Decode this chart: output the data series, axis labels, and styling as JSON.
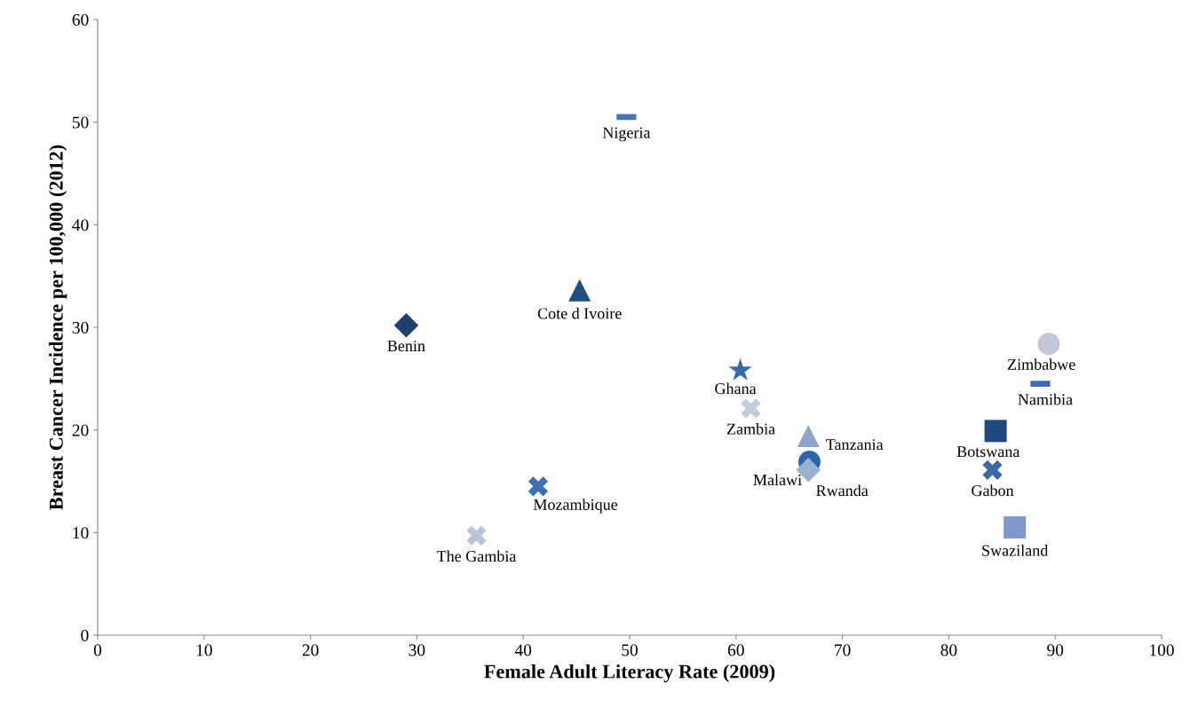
{
  "chart_data": {
    "type": "scatter",
    "xlabel": "Female Adult Literacy Rate (2009)",
    "ylabel": "Breast Cancer Incidence per 100,000 (2012)",
    "xlim": [
      0,
      100
    ],
    "xticks": [
      0,
      10,
      20,
      30,
      40,
      50,
      60,
      70,
      80,
      90,
      100
    ],
    "ylim": [
      0,
      60
    ],
    "yticks": [
      0,
      10,
      20,
      30,
      40,
      50,
      60
    ],
    "grid": false,
    "legend": false,
    "series": [
      {
        "name": "Benin",
        "color": "#1f3f6e",
        "marker": "diamond",
        "x": [
          29.0
        ],
        "values": [
          30.2
        ]
      },
      {
        "name": "Cote d Ivoire",
        "color": "#1f4e80",
        "marker": "triangle",
        "x": [
          45.3
        ],
        "values": [
          33.6
        ]
      },
      {
        "name": "Nigeria",
        "color": "#4a72b8",
        "x": [
          49.7
        ],
        "values": [
          50.5
        ]
      },
      {
        "name": "Mozambique",
        "color": "#3d6fb5",
        "marker": "cross",
        "x": [
          41.4
        ],
        "values": [
          14.5
        ]
      },
      {
        "name": "The Gambia",
        "color": "#b8c4da",
        "marker": "cross",
        "x": [
          35.6
        ],
        "values": [
          9.7
        ]
      },
      {
        "name": "Ghana",
        "color": "#3b6aa8",
        "marker": "star",
        "x": [
          60.4
        ],
        "values": [
          25.8
        ]
      },
      {
        "name": "Zambia",
        "color": "#c4ccdc",
        "marker": "cross",
        "x": [
          61.4
        ],
        "values": [
          22.1
        ]
      },
      {
        "name": "Tanzania",
        "color": "#8fa5c8",
        "marker": "triangle",
        "x": [
          66.8
        ],
        "values": [
          19.4
        ]
      },
      {
        "name": "Malawi",
        "color": "#2e64ad",
        "marker": "circle",
        "x": [
          66.9
        ],
        "values": [
          16.9
        ]
      },
      {
        "name": "Rwanda",
        "color": "#9ab0d0",
        "marker": "diamond",
        "x": [
          66.8
        ],
        "values": [
          16.1
        ]
      },
      {
        "name": "Zimbabwe",
        "color": "#c0c8da",
        "marker": "circle",
        "x": [
          89.4
        ],
        "values": [
          28.4
        ]
      },
      {
        "name": "Namibia",
        "color": "#3a6bbf",
        "x": [
          88.6
        ],
        "values": [
          24.5
        ]
      },
      {
        "name": "Botswana",
        "color": "#1f4a7e",
        "marker": "square",
        "x": [
          84.4
        ],
        "values": [
          19.9
        ]
      },
      {
        "name": "Gabon",
        "color": "#3a6aa5",
        "marker": "cross",
        "x": [
          84.1
        ],
        "values": [
          16.1
        ]
      },
      {
        "name": "Swaziland",
        "color": "#7f98c8",
        "marker": "square",
        "x": [
          86.2
        ],
        "values": [
          10.5
        ]
      }
    ]
  }
}
